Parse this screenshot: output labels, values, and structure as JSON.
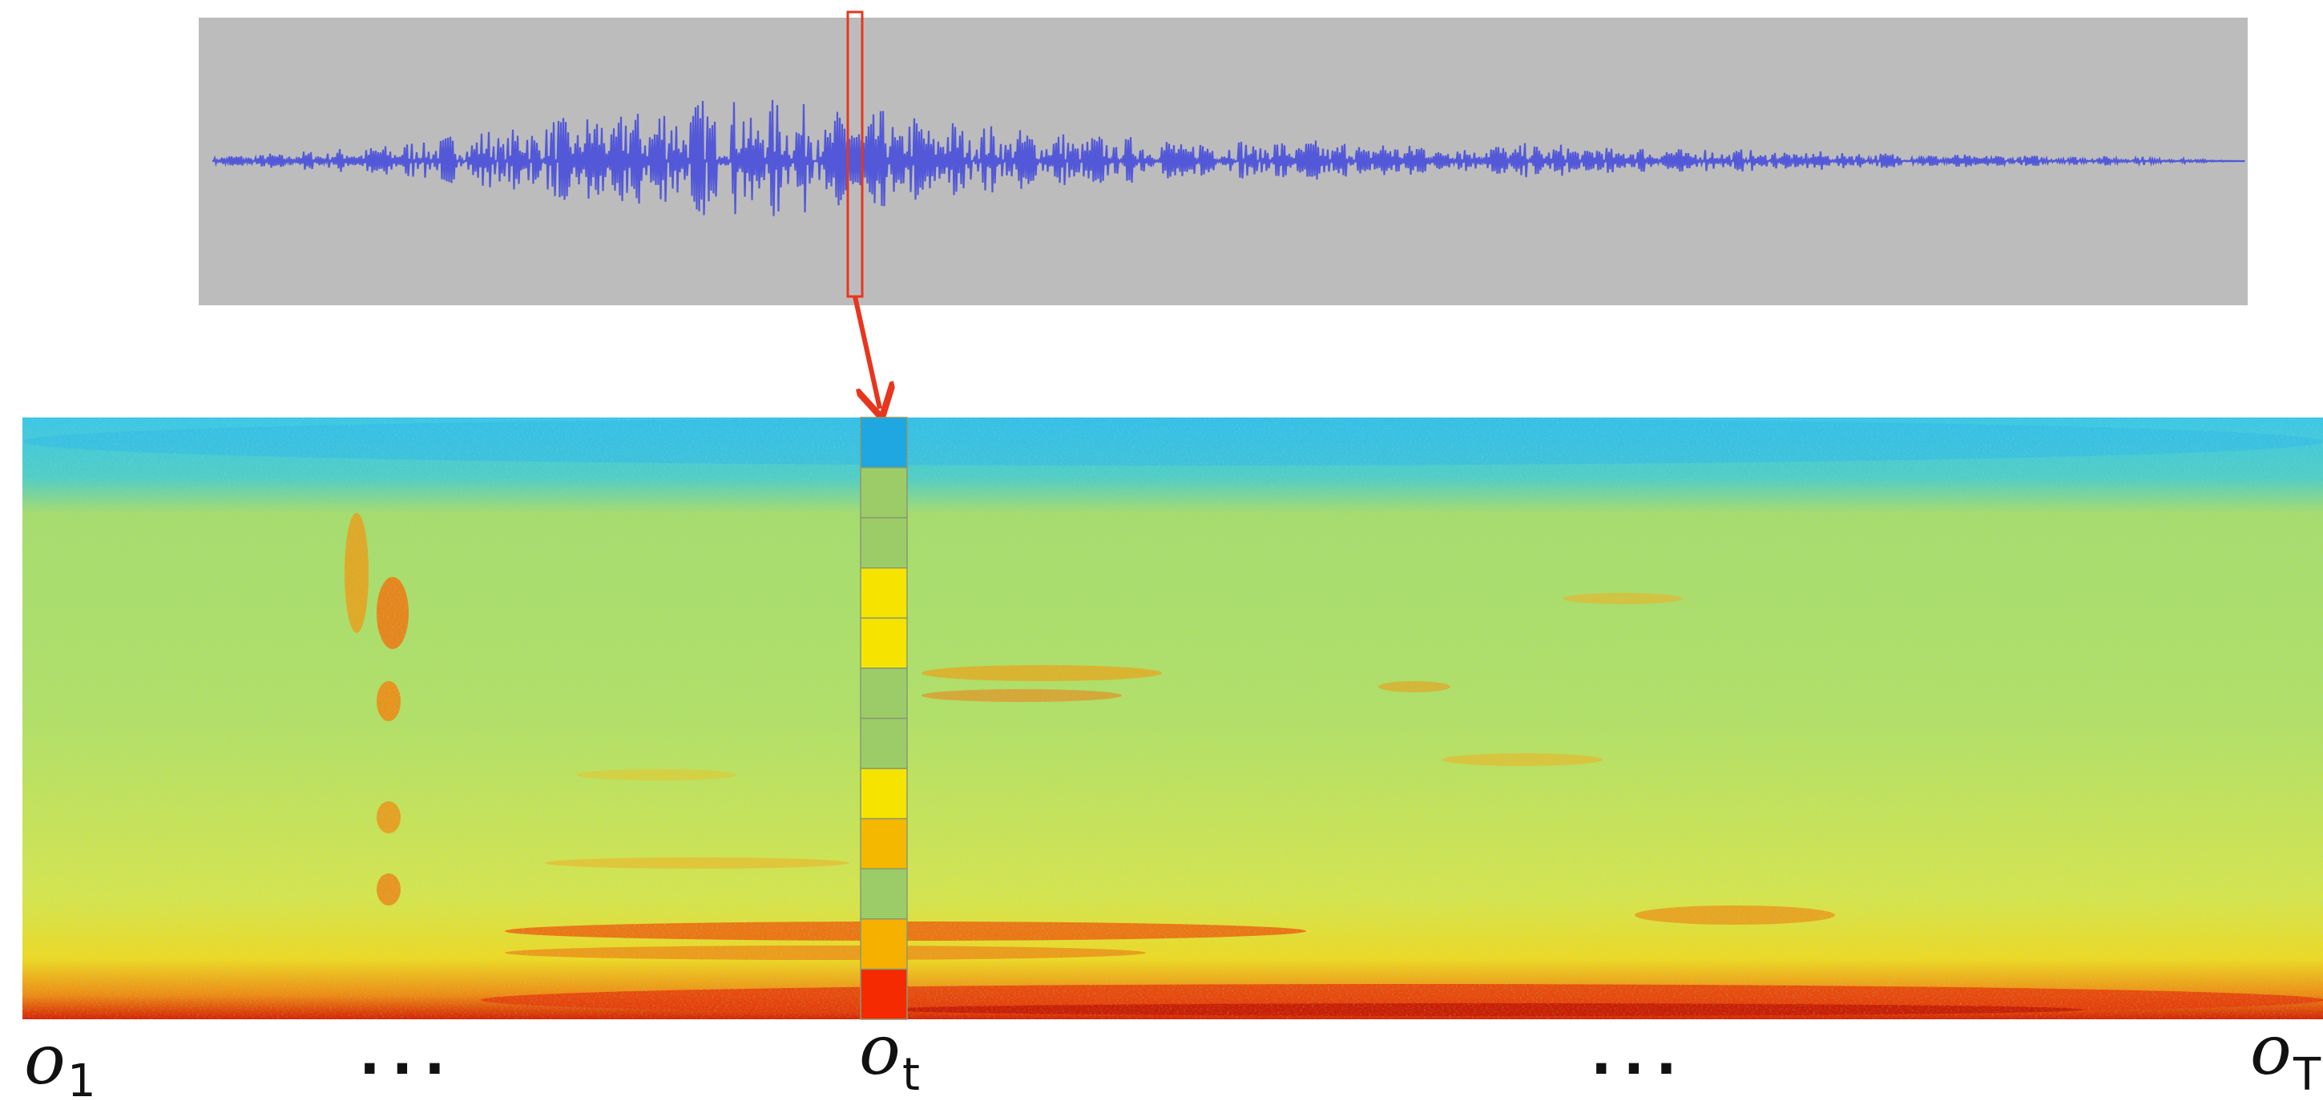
{
  "labels": [
    {
      "base": "o",
      "sub": "1"
    },
    {
      "text": "..."
    },
    {
      "base": "o",
      "sub": "t"
    },
    {
      "text": "..."
    },
    {
      "base": "o",
      "sub": "T"
    }
  ]
}
